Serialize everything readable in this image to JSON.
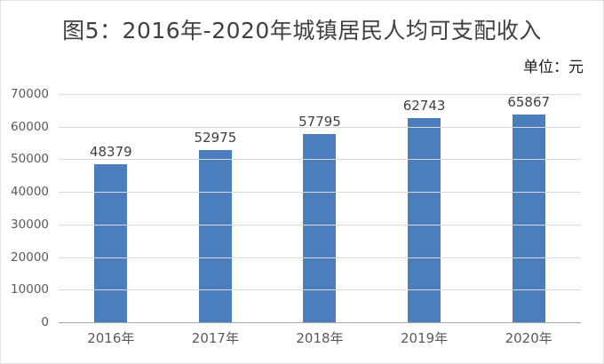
{
  "chart_data": {
    "type": "bar",
    "title": "图5：2016年-2020年城镇居民人均可支配收入",
    "unit": "单位：元",
    "categories": [
      "2016年",
      "2017年",
      "2018年",
      "2019年",
      "2020年"
    ],
    "values": [
      48379,
      52975,
      57795,
      62743,
      65867
    ],
    "xlabel": "",
    "ylabel": "",
    "ylim": [
      0,
      70000
    ],
    "yticks": [
      0,
      10000,
      20000,
      30000,
      40000,
      50000,
      60000,
      70000
    ],
    "grid": true,
    "legend_position": "none",
    "colors": {
      "bar": "#4b7ebc",
      "gridline": "#d9d9d9",
      "axis_line": "#a6a6a6",
      "title_text": "#404040",
      "tick_text": "#595959",
      "value_label_text": "#404040",
      "unit_text": "#1a1a1a",
      "background": "#ffffff",
      "figure_border": "#e3e3e3"
    }
  }
}
